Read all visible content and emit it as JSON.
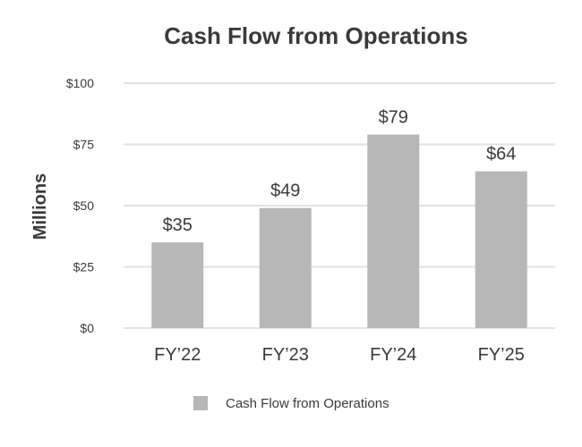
{
  "chart_data": {
    "type": "bar",
    "title": "Cash Flow from Operations",
    "xlabel": "",
    "ylabel": "Millions",
    "categories": [
      "FY’22",
      "FY’23",
      "FY’24",
      "FY’25"
    ],
    "series": [
      {
        "name": "Cash Flow from Operations",
        "values": [
          35,
          49,
          79,
          64
        ],
        "data_labels": [
          "$35",
          "$49",
          "$79",
          "$64"
        ],
        "color": "#b7b7b7"
      }
    ],
    "ylim": [
      0,
      100
    ],
    "yticks": [
      0,
      25,
      50,
      75,
      100
    ],
    "ytick_labels": [
      "$0",
      "$25",
      "$50",
      "$75",
      "$100"
    ],
    "grid": true,
    "legend_position": "bottom"
  }
}
